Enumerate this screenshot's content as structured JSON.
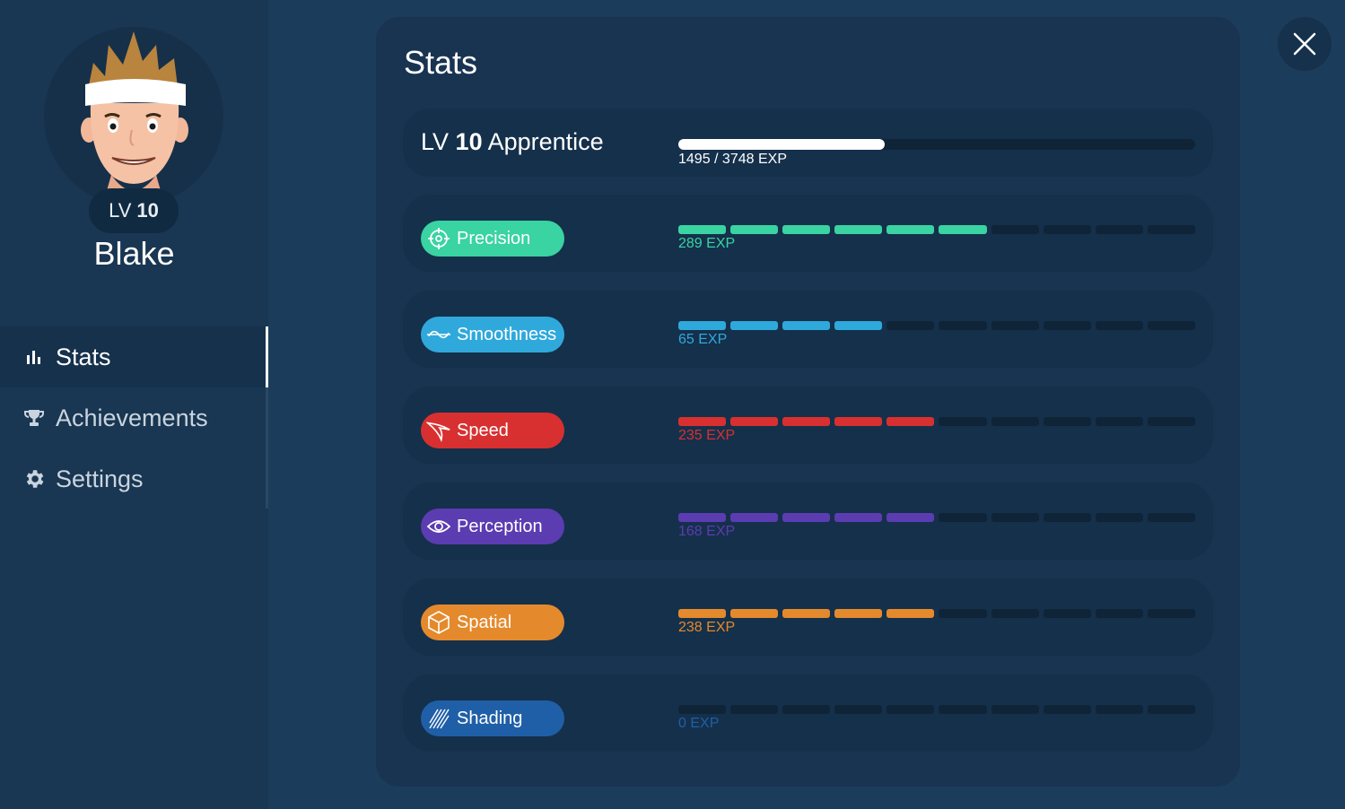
{
  "profile": {
    "level_prefix": "LV",
    "level_value": "10",
    "name": "Blake"
  },
  "nav": {
    "items": [
      {
        "label": "Stats",
        "icon": "bar-chart-icon",
        "active": true
      },
      {
        "label": "Achievements",
        "icon": "trophy-icon",
        "active": false
      },
      {
        "label": "Settings",
        "icon": "gear-icon",
        "active": false
      }
    ]
  },
  "panel": {
    "title": "Stats",
    "level": {
      "prefix": "LV",
      "value": "10",
      "rank": "Apprentice",
      "exp_text": "1495 / 3748 EXP",
      "exp_current": 1495,
      "exp_total": 3748
    },
    "stats": [
      {
        "name": "Precision",
        "icon": "crosshair-icon",
        "color": "#3ad3a2",
        "exp_text": "289 EXP",
        "filled": 6,
        "segments": 10
      },
      {
        "name": "Smoothness",
        "icon": "wave-icon",
        "color": "#2fa9dc",
        "exp_text": "65 EXP",
        "filled": 4,
        "segments": 10
      },
      {
        "name": "Speed",
        "icon": "swoosh-icon",
        "color": "#d83030",
        "exp_text": "235 EXP",
        "filled": 5,
        "segments": 10
      },
      {
        "name": "Perception",
        "icon": "eye-icon",
        "color": "#5b3cb1",
        "exp_text": "168 EXP",
        "filled": 5,
        "segments": 10
      },
      {
        "name": "Spatial",
        "icon": "cube-icon",
        "color": "#e48a2c",
        "exp_text": "238 EXP",
        "filled": 5,
        "segments": 10
      },
      {
        "name": "Shading",
        "icon": "hatch-icon",
        "color": "#1f5fa8",
        "exp_text": "0 EXP",
        "filled": 0,
        "segments": 10
      }
    ]
  }
}
